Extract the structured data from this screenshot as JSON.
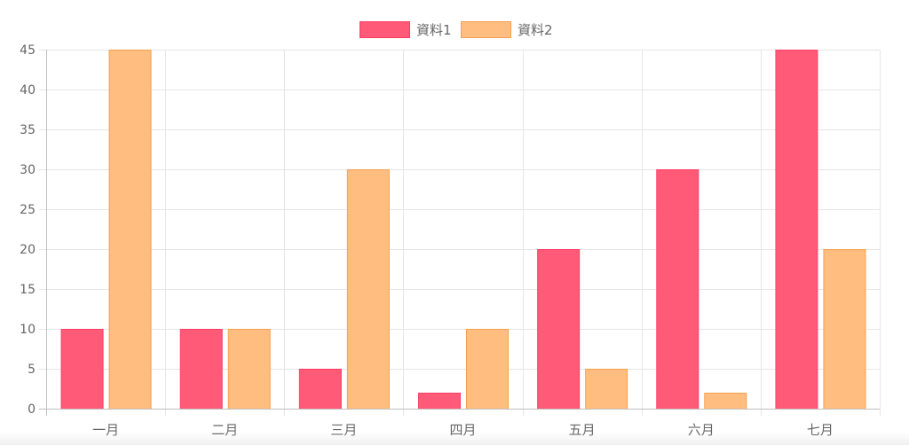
{
  "chart_data": {
    "type": "bar",
    "title": "",
    "xlabel": "",
    "ylabel": "",
    "categories": [
      "一月",
      "二月",
      "三月",
      "四月",
      "五月",
      "六月",
      "七月"
    ],
    "series": [
      {
        "name": "資料1",
        "values": [
          10,
          10,
          5,
          2,
          20,
          30,
          45
        ],
        "fill": "#ff5a78",
        "stroke": "#ff3d66"
      },
      {
        "name": "資料2",
        "values": [
          45,
          10,
          30,
          10,
          5,
          2,
          20
        ],
        "fill": "#ffbd80",
        "stroke": "#f5a04f"
      }
    ],
    "ylim": [
      0,
      45
    ],
    "yticks": [
      0,
      5,
      10,
      15,
      20,
      25,
      30,
      35,
      40,
      45
    ],
    "grid": true,
    "legend_position": "top-center"
  }
}
